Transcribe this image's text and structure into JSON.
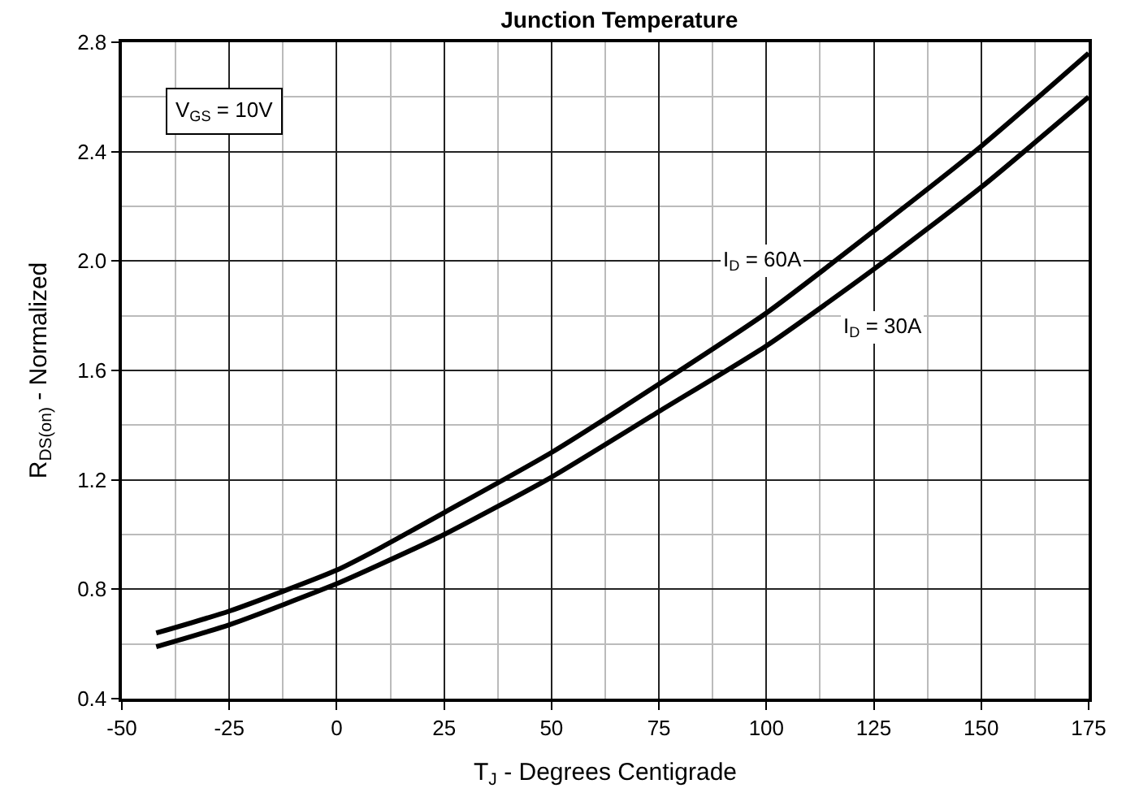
{
  "chart_data": {
    "type": "line",
    "title": "Junction Temperature",
    "xlabel": "T$_{J}$ - Degrees Centigrade",
    "ylabel": "R$_{DS(on)}$ - Normalized",
    "annotations": [
      "V$_{GS}$ = 10V"
    ],
    "series": [
      {
        "name": "I$_{D}$ = 60A",
        "color": "#000000",
        "x": [
          -42,
          -25,
          0,
          10,
          25,
          50,
          75,
          100,
          125,
          150,
          175
        ],
        "values": [
          0.64,
          0.72,
          0.87,
          0.95,
          1.08,
          1.3,
          1.55,
          1.81,
          2.11,
          2.42,
          2.76
        ]
      },
      {
        "name": "I$_{D}$ = 30A",
        "color": "#000000",
        "x": [
          -42,
          -25,
          0,
          10,
          25,
          50,
          75,
          100,
          125,
          150,
          175
        ],
        "values": [
          0.59,
          0.67,
          0.82,
          0.89,
          1.0,
          1.21,
          1.45,
          1.69,
          1.97,
          2.27,
          2.6
        ]
      }
    ],
    "xlim": [
      -50,
      175
    ],
    "xticks": [
      -50,
      -25,
      0,
      25,
      50,
      75,
      100,
      125,
      150,
      175
    ],
    "ylim": [
      0.4,
      2.8
    ],
    "yticks": [
      0.4,
      0.8,
      1.2,
      1.6,
      {
        "value": 2,
        "label": "2.0"
      },
      2.4,
      2.8
    ],
    "grid": true,
    "legend": false,
    "marker": "none",
    "line_style": "solid"
  }
}
